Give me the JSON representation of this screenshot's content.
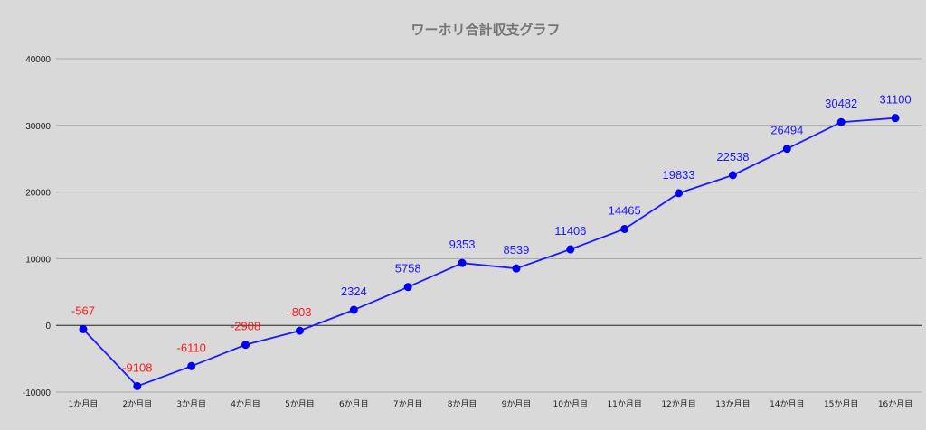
{
  "chart_data": {
    "type": "line",
    "title": "ワーホリ合計収支グラフ",
    "xlabel": "",
    "ylabel": "",
    "categories": [
      "1か月目",
      "2か月目",
      "3か月目",
      "4か月目",
      "5か月目",
      "6か月目",
      "7か月目",
      "8か月目",
      "9か月目",
      "10か月目",
      "11か月目",
      "12か月目",
      "13か月目",
      "14か月目",
      "15か月目",
      "16か月目"
    ],
    "series": [
      {
        "values": [
          -567,
          -9108,
          -6110,
          -2908,
          -803,
          2324,
          5758,
          9353,
          8539,
          11406,
          14465,
          19833,
          22538,
          26494,
          30482,
          31100
        ]
      }
    ],
    "ylim": [
      -10000,
      40000
    ],
    "yticks": [
      40000,
      30000,
      20000,
      10000,
      0,
      -10000
    ],
    "grid": true,
    "legend": "none",
    "colors": {
      "line": "#1a1aff",
      "marker": "#0000ee",
      "positive_label": "#1a1aff",
      "negative_label": "#ff1a1a",
      "grid": "#a6a6a6",
      "background": "#d9d9d9",
      "title": "#757575"
    }
  }
}
